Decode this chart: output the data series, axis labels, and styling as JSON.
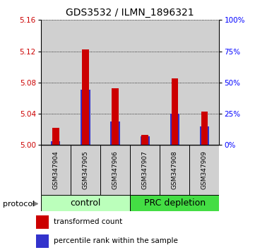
{
  "title": "GDS3532 / ILMN_1896321",
  "samples": [
    "GSM347904",
    "GSM347905",
    "GSM347906",
    "GSM347907",
    "GSM347908",
    "GSM347909"
  ],
  "red_values": [
    5.022,
    5.122,
    5.073,
    5.013,
    5.085,
    5.043
  ],
  "blue_percentiles": [
    3,
    44,
    19,
    7,
    25,
    15
  ],
  "y_min": 5.0,
  "y_max": 5.16,
  "y_ticks_left": [
    5.0,
    5.04,
    5.08,
    5.12,
    5.16
  ],
  "y_ticks_right": [
    0,
    25,
    50,
    75,
    100
  ],
  "red_color": "#cc0000",
  "blue_color": "#3333cc",
  "control_color": "#bbffbb",
  "prc_color": "#44dd44",
  "bar_bg_color": "#d0d0d0",
  "title_fontsize": 10,
  "tick_fontsize": 7.5,
  "sample_fontsize": 6.5,
  "group_fontsize": 9,
  "legend_fontsize": 7.5,
  "bar_width": 0.45
}
